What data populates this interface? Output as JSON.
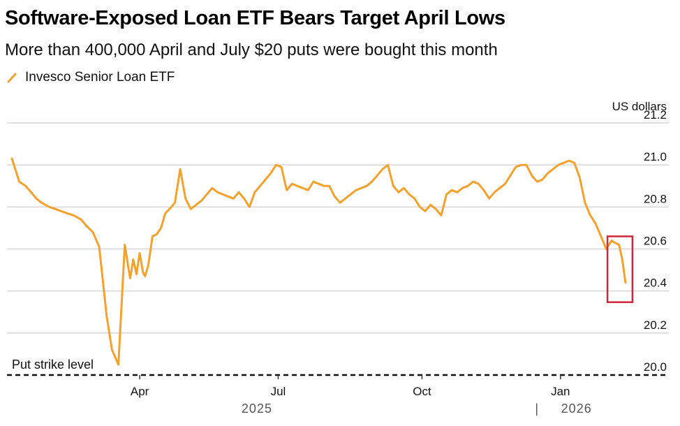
{
  "colors": {
    "line": "#F5A12B",
    "highlight": "#D0263A",
    "grid": "#d6d6d6",
    "strike": "#111111"
  },
  "header": {
    "title": "Software-Exposed Loan ETF Bears Target April Lows",
    "subtitle": "More than 400,000 April and July $20 puts were bought this month"
  },
  "chart_data": {
    "type": "line",
    "title": "Software-Exposed Loan ETF Bears Target April Lows",
    "subtitle": "More than 400,000 April and July $20 puts were bought this month",
    "unit_label": "US dollars",
    "ylim": [
      20.0,
      21.2
    ],
    "yticks": [
      "21.2",
      "21.0",
      "20.8",
      "20.6",
      "20.4",
      "20.2",
      "20.0"
    ],
    "yticks_values": [
      21.2,
      21.0,
      20.8,
      20.6,
      20.4,
      20.2,
      20.0
    ],
    "xlim": [
      0,
      58
    ],
    "xticks": [
      {
        "label": "Apr",
        "x": 12
      },
      {
        "label": "Jul",
        "x": 25
      },
      {
        "label": "Oct",
        "x": 38.5
      },
      {
        "label": "Jan",
        "x": 51.5
      }
    ],
    "years": [
      {
        "label": "2025",
        "x": 23
      },
      {
        "label": "|",
        "x": 49.3
      },
      {
        "label": "2026",
        "x": 53
      }
    ],
    "series": [
      {
        "name": "Invesco Senior Loan ETF",
        "x": [
          0,
          0.7,
          1.3,
          1.8,
          2.3,
          2.8,
          3.5,
          4.1,
          4.6,
          5.2,
          5.8,
          6.5,
          7.0,
          7.6,
          8.2,
          8.9,
          9.4,
          10.0,
          10.6,
          11.1,
          11.4,
          11.7,
          12.0,
          12.3,
          12.5,
          12.8,
          13.2,
          13.6,
          14.0,
          14.4,
          14.8,
          15.3,
          15.8,
          16.3,
          16.8,
          17.3,
          17.8,
          18.3,
          18.8,
          19.3,
          19.8,
          20.3,
          20.8,
          21.3,
          21.8,
          22.3,
          22.8,
          23.3,
          23.8,
          24.3,
          24.8,
          25.3,
          25.8,
          26.3,
          26.8,
          27.3,
          27.8,
          28.3,
          28.8,
          29.3,
          29.8,
          30.3,
          30.8,
          31.3,
          31.8,
          32.3,
          32.8,
          33.3,
          33.8,
          34.3,
          34.8,
          35.3,
          35.8,
          36.3,
          36.8,
          37.3,
          37.8,
          38.3,
          38.8,
          39.3,
          39.8,
          40.3,
          40.8,
          41.3,
          41.8,
          42.3,
          42.8,
          43.3,
          43.8,
          44.3,
          44.8,
          45.3,
          45.8,
          46.3,
          46.8,
          47.3,
          47.8,
          48.3,
          48.8,
          49.3,
          49.8,
          50.3,
          50.8,
          51.3,
          51.8,
          52.3,
          52.8,
          53.3,
          53.8,
          54.3,
          54.8,
          55.3,
          55.8,
          56.3,
          56.6,
          57.0,
          57.3,
          57.6
        ],
        "values": [
          21.03,
          20.92,
          20.9,
          20.87,
          20.84,
          20.82,
          20.8,
          20.79,
          20.78,
          20.77,
          20.76,
          20.74,
          20.71,
          20.68,
          20.61,
          20.28,
          20.12,
          20.05,
          20.62,
          20.46,
          20.55,
          20.48,
          20.58,
          20.49,
          20.47,
          20.52,
          20.66,
          20.67,
          20.7,
          20.77,
          20.79,
          20.82,
          20.98,
          20.84,
          20.79,
          20.81,
          20.83,
          20.86,
          20.89,
          20.87,
          20.86,
          20.85,
          20.84,
          20.87,
          20.84,
          20.8,
          20.87,
          20.9,
          20.93,
          20.96,
          21.0,
          20.99,
          20.88,
          20.91,
          20.9,
          20.89,
          20.88,
          20.92,
          20.91,
          20.9,
          20.9,
          20.85,
          20.82,
          20.84,
          20.86,
          20.88,
          20.89,
          20.9,
          20.92,
          20.95,
          20.98,
          21.0,
          20.9,
          20.87,
          20.89,
          20.86,
          20.84,
          20.8,
          20.78,
          20.81,
          20.79,
          20.76,
          20.86,
          20.88,
          20.87,
          20.89,
          20.9,
          20.92,
          20.91,
          20.88,
          20.84,
          20.87,
          20.89,
          20.91,
          20.95,
          20.99,
          21.0,
          21.0,
          20.95,
          20.92,
          20.93,
          20.96,
          20.98,
          21.0,
          21.01,
          21.02,
          21.01,
          20.94,
          20.82,
          20.76,
          20.72,
          20.66,
          20.6,
          20.64,
          20.63,
          20.62,
          20.55,
          20.44
        ],
        "color": "#F5A12B"
      }
    ],
    "annotations": [
      {
        "type": "hline",
        "y": 20.0,
        "label": "Put strike level",
        "style": "dashed"
      },
      {
        "type": "highlight-box",
        "x0": 56.3,
        "x1": 57.6,
        "y0": 20.38,
        "y1": 20.66,
        "color": "#D0263A"
      }
    ]
  }
}
